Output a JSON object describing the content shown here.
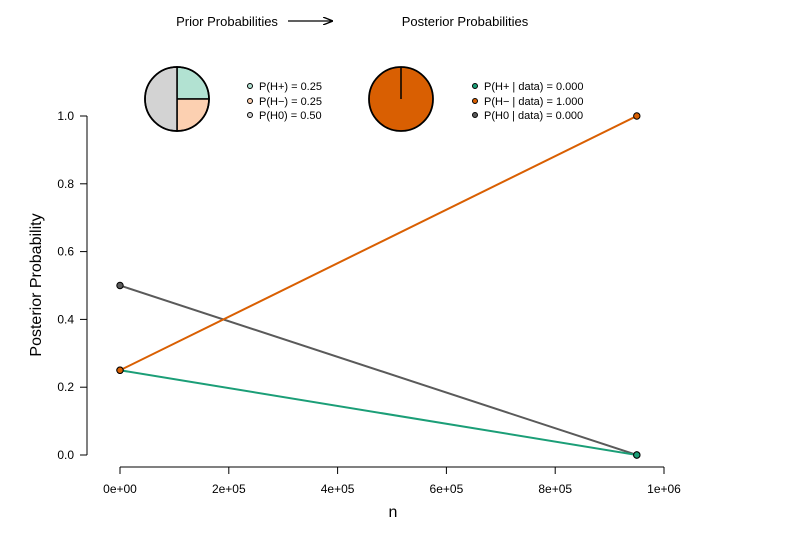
{
  "header": {
    "prior_title": "Prior Probabilities",
    "posterior_title": "Posterior Probabilities"
  },
  "prior": {
    "legend": [
      "P(H+) = 0.25",
      "P(H−) = 0.25",
      "P(H0) = 0.50"
    ],
    "slices": [
      {
        "label": "H+",
        "value": 0.25,
        "color": "#b2e2d2"
      },
      {
        "label": "H−",
        "value": 0.25,
        "color": "#fcd0b1"
      },
      {
        "label": "H0",
        "value": 0.5,
        "color": "#d3d3d3"
      }
    ]
  },
  "posterior": {
    "legend": [
      "P(H+ | data) = 0.000",
      "P(H− | data) = 1.000",
      "P(H0 | data) = 0.000"
    ],
    "slices": [
      {
        "label": "H+",
        "value": 0.0,
        "color": "#1b9e77"
      },
      {
        "label": "H−",
        "value": 1.0,
        "color": "#d95f02"
      },
      {
        "label": "H0",
        "value": 0.0,
        "color": "#5a5a5a"
      }
    ]
  },
  "chart_data": {
    "type": "line",
    "xlabel": "n",
    "ylabel": "Posterior Probability",
    "xlim": [
      0,
      1000000
    ],
    "ylim": [
      0,
      1
    ],
    "xticks": [
      0,
      200000,
      400000,
      600000,
      800000,
      1000000
    ],
    "xtick_labels": [
      "0e+00",
      "2e+05",
      "4e+05",
      "6e+05",
      "8e+05",
      "1e+06"
    ],
    "yticks": [
      0,
      0.2,
      0.4,
      0.6,
      0.8,
      1.0
    ],
    "ytick_labels": [
      "0.0",
      "0.2",
      "0.4",
      "0.6",
      "0.8",
      "1.0"
    ],
    "x": [
      0,
      950000
    ],
    "series": [
      {
        "key": "h0",
        "values": [
          0.5,
          0.0
        ],
        "color": "#5a5a5a"
      },
      {
        "key": "hplus",
        "values": [
          0.25,
          0.0
        ],
        "color": "#1b9e77"
      },
      {
        "key": "hminus",
        "values": [
          0.25,
          1.0
        ],
        "color": "#d95f02"
      }
    ]
  }
}
